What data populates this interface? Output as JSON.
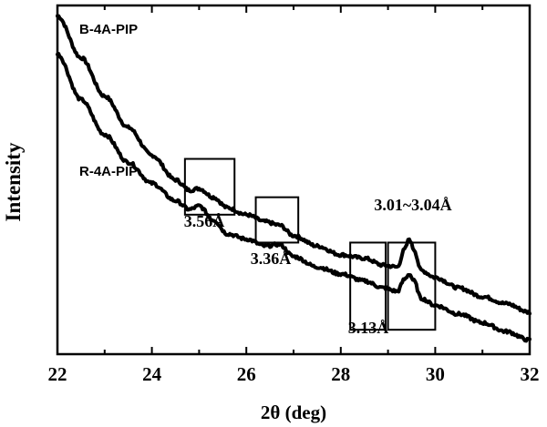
{
  "chart_data": {
    "type": "line",
    "xlabel": "2θ (deg)",
    "ylabel": "Intensity",
    "xlim": [
      22,
      32
    ],
    "xticks": [
      22,
      24,
      26,
      28,
      30,
      32
    ],
    "xtick_labels": [
      "22",
      "24",
      "26",
      "28",
      "30",
      "32"
    ],
    "yaxis_ticks_shown": false,
    "ylim": [
      0,
      100
    ],
    "series": [
      {
        "name": "B-4A-PIP",
        "x": [
          22.0,
          22.5,
          23.0,
          23.5,
          24.0,
          24.5,
          24.8,
          25.0,
          25.3,
          25.6,
          26.0,
          26.4,
          26.7,
          27.0,
          27.5,
          28.0,
          28.5,
          28.9,
          29.2,
          29.35,
          29.45,
          29.55,
          29.7,
          30.0,
          30.5,
          31.0,
          31.5,
          32.0
        ],
        "y": [
          97,
          85,
          74,
          65,
          57,
          50,
          47,
          47.5,
          45,
          42,
          40,
          38,
          37,
          34,
          31,
          28.5,
          27.5,
          25.5,
          25,
          30,
          33,
          30,
          24,
          22,
          19,
          16.5,
          14.5,
          12
        ]
      },
      {
        "name": "R-4A-PIP",
        "x": [
          22.0,
          22.5,
          23.0,
          23.5,
          24.0,
          24.5,
          24.8,
          25.0,
          25.3,
          25.6,
          26.0,
          26.4,
          26.7,
          27.0,
          27.5,
          28.0,
          28.5,
          28.9,
          29.2,
          29.35,
          29.45,
          29.55,
          29.7,
          30.0,
          30.5,
          31.0,
          31.5,
          32.0
        ],
        "y": [
          86,
          73,
          63,
          55,
          49,
          44,
          41.5,
          42.5,
          38.5,
          34.5,
          33,
          31,
          31.5,
          28,
          25,
          23,
          21,
          19,
          18,
          21.5,
          23,
          21,
          16,
          14,
          11.5,
          9,
          6.5,
          4
        ]
      }
    ],
    "series_labels": [
      "B-4A-PIP",
      "R-4A-PIP"
    ],
    "annotations": [
      {
        "label": "3.56Å",
        "box_x": [
          24.7,
          25.75
        ],
        "box_y": [
          40,
          56
        ]
      },
      {
        "label": "3.36Å",
        "box_x": [
          26.2,
          27.1
        ],
        "box_y": [
          32,
          45
        ]
      },
      {
        "label": "3.13Å",
        "box_x": [
          28.2,
          28.95
        ],
        "box_y": [
          7,
          32
        ]
      },
      {
        "label": "3.01~3.04Å",
        "box_x": [
          29.0,
          30.0
        ],
        "box_y": [
          7,
          32
        ]
      }
    ]
  }
}
